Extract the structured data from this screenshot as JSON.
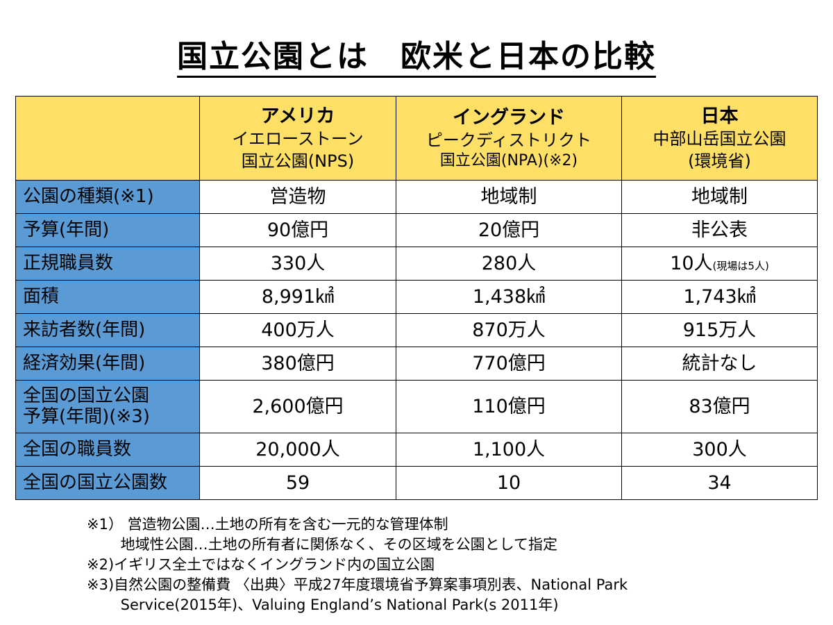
{
  "title": "国立公園とは　欧米と日本の比較",
  "columns": [
    {
      "line1": "アメリカ",
      "line2": "イエローストーン",
      "line3": "国立公園(NPS)"
    },
    {
      "line1": "イングランド",
      "line2": "ピークディストリクト",
      "line3": "国立公園(NPA)(※2)"
    },
    {
      "line1": "日本",
      "line2": "中部山岳国立公園",
      "line3": "(環境省)"
    }
  ],
  "rows": [
    {
      "label": "公園の種類(※1)",
      "usa": "営造物",
      "eng": "地域制",
      "jpn": "地域制"
    },
    {
      "label": "予算(年間)",
      "usa": "90億円",
      "eng": "20億円",
      "jpn": "非公表"
    },
    {
      "label": "正規職員数",
      "usa": "330人",
      "eng": "280人",
      "jpn": "10人",
      "jpn_note": "(現場は5人)"
    },
    {
      "label": "面積",
      "usa": "8,991㎢",
      "eng": "1,438㎢",
      "jpn": "1,743㎢"
    },
    {
      "label": "来訪者数(年間)",
      "usa": "400万人",
      "eng": "870万人",
      "jpn": "915万人"
    },
    {
      "label": "経済効果(年間)",
      "usa": "380億円",
      "eng": "770億円",
      "jpn": "統計なし"
    },
    {
      "label_line1": "全国の国立公園",
      "label_line2": "予算(年間)(※3)",
      "usa": "2,600億円",
      "eng": "110億円",
      "jpn": "83億円"
    },
    {
      "label": "全国の職員数",
      "usa": "20,000人",
      "eng": "1,100人",
      "jpn": "300人"
    },
    {
      "label": "全国の国立公園数",
      "usa": "59",
      "eng": "10",
      "jpn": "34"
    }
  ],
  "footnotes": [
    "※1） 営造物公園…土地の所有を含む一元的な管理体制",
    "　　 地域性公園…土地の所有者に関係なく、その区域を公園として指定",
    "※2)イギリス全土ではなくイングランド内の国立公園",
    "※3)自然公園の整備費 〈出典〉平成27年度環境省予算案事項別表、National Park",
    "　　 Service(2015年)、Valuing England’s National Park(s 2011年)"
  ]
}
